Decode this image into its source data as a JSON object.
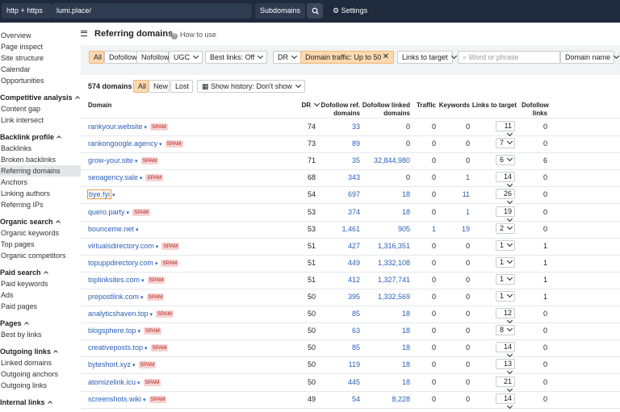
{
  "topbar": {
    "protocol": "http + https",
    "url": "lumi.place/",
    "mode": "Subdomains",
    "settings": "Settings"
  },
  "sidebar": {
    "items": [
      {
        "label": "Overview"
      },
      {
        "label": "Page inspect"
      },
      {
        "label": "Site structure"
      },
      {
        "label": "Calendar"
      },
      {
        "label": "Opportunities"
      }
    ],
    "groups": [
      {
        "title": "Competitive analysis",
        "items": [
          {
            "label": "Content gap"
          },
          {
            "label": "Link intersect"
          }
        ]
      },
      {
        "title": "Backlink profile",
        "items": [
          {
            "label": "Backlinks"
          },
          {
            "label": "Broken backlinks"
          },
          {
            "label": "Referring domains",
            "active": true
          },
          {
            "label": "Anchors"
          },
          {
            "label": "Linking authors"
          },
          {
            "label": "Referring IPs"
          }
        ]
      },
      {
        "title": "Organic search",
        "items": [
          {
            "label": "Organic keywords"
          },
          {
            "label": "Top pages"
          },
          {
            "label": "Organic competitors"
          }
        ]
      },
      {
        "title": "Paid search",
        "items": [
          {
            "label": "Paid keywords"
          },
          {
            "label": "Ads"
          },
          {
            "label": "Paid pages"
          }
        ]
      },
      {
        "title": "Pages",
        "items": [
          {
            "label": "Best by links"
          }
        ]
      },
      {
        "title": "Outgoing links",
        "items": [
          {
            "label": "Linked domains"
          },
          {
            "label": "Outgoing anchors"
          },
          {
            "label": "Outgoing links"
          }
        ]
      },
      {
        "title": "Internal links",
        "items": []
      }
    ]
  },
  "header": {
    "title": "Referring domains",
    "help": "How to use"
  },
  "filters": {
    "tabs": [
      "All",
      "Dofollow",
      "Nofollow"
    ],
    "ugc": "UGC",
    "best_links": "Best links: Off",
    "dr": "DR",
    "domain_traffic": "Domain traffic: Up to 50",
    "links_to_target": "Links to target",
    "search_placeholder": "Word or phrase",
    "domain_name": "Domain name"
  },
  "table": {
    "count": "574 domains",
    "tabs": [
      "All",
      "New",
      "Lost"
    ],
    "history": "Show history: Don't show",
    "columns": [
      "Domain",
      "DR",
      "Dofollow ref. domains",
      "Dofollow linked domains",
      "Traffic",
      "Keywords",
      "Links to target",
      "Dofollow links"
    ],
    "rows": [
      {
        "domain": "rankyour.website",
        "tag": "SPAM",
        "dr": "74",
        "ref": "33",
        "linked": "0",
        "traffic": "0",
        "keywords": "0",
        "links": "11",
        "dofollow": "0"
      },
      {
        "domain": "rankongoogle.agency",
        "tag": "SPAM",
        "dr": "73",
        "ref": "89",
        "linked": "0",
        "traffic": "0",
        "keywords": "0",
        "links": "7",
        "dofollow": "0"
      },
      {
        "domain": "grow-your.site",
        "tag": "SPAM",
        "dr": "71",
        "ref": "35",
        "linked": "32,844,980",
        "traffic": "0",
        "keywords": "0",
        "links": "6",
        "dofollow": "6"
      },
      {
        "domain": "seoagency.sale",
        "tag": "SPAM",
        "dr": "68",
        "ref": "343",
        "linked": "0",
        "traffic": "0",
        "keywords": "1",
        "links": "14",
        "dofollow": "0"
      },
      {
        "domain": "bye.fyi",
        "focused": true,
        "dr": "54",
        "ref": "697",
        "linked": "18",
        "traffic": "0",
        "keywords": "11",
        "links": "26",
        "dofollow": "0"
      },
      {
        "domain": "quero.party",
        "tag": "SPAM",
        "dr": "53",
        "ref": "374",
        "linked": "18",
        "traffic": "0",
        "keywords": "1",
        "links": "19",
        "dofollow": "0"
      },
      {
        "domain": "bounceme.net",
        "dr": "53",
        "ref": "1,461",
        "linked": "905",
        "traffic": "1",
        "keywords": "19",
        "links": "2",
        "dofollow": "0"
      },
      {
        "domain": "virtualsdirectory.com",
        "tag": "SPAM",
        "dr": "51",
        "ref": "427",
        "linked": "1,316,351",
        "traffic": "0",
        "keywords": "0",
        "links": "1",
        "dofollow": "1"
      },
      {
        "domain": "topuppdirectory.com",
        "tag": "SPAM",
        "dr": "51",
        "ref": "449",
        "linked": "1,332,108",
        "traffic": "0",
        "keywords": "0",
        "links": "1",
        "dofollow": "1"
      },
      {
        "domain": "toplinksites.com",
        "tag": "SPAM",
        "dr": "51",
        "ref": "412",
        "linked": "1,327,741",
        "traffic": "0",
        "keywords": "0",
        "links": "1",
        "dofollow": "1"
      },
      {
        "domain": "prepostlink.com",
        "tag": "SPAM",
        "dr": "50",
        "ref": "395",
        "linked": "1,332,569",
        "traffic": "0",
        "keywords": "0",
        "links": "1",
        "dofollow": "1"
      },
      {
        "domain": "analyticshaven.top",
        "tag": "SPAM",
        "dr": "50",
        "ref": "85",
        "linked": "18",
        "traffic": "0",
        "keywords": "0",
        "links": "12",
        "dofollow": "0"
      },
      {
        "domain": "blogsphere.top",
        "tag": "SPAM",
        "dr": "50",
        "ref": "63",
        "linked": "18",
        "traffic": "0",
        "keywords": "0",
        "links": "8",
        "dofollow": "0"
      },
      {
        "domain": "creativeposts.top",
        "tag": "SPAM",
        "dr": "50",
        "ref": "85",
        "linked": "18",
        "traffic": "0",
        "keywords": "0",
        "links": "14",
        "dofollow": "0"
      },
      {
        "domain": "byteshort.xyz",
        "tag": "SPAM",
        "dr": "50",
        "ref": "119",
        "linked": "18",
        "traffic": "0",
        "keywords": "0",
        "links": "13",
        "dofollow": "0"
      },
      {
        "domain": "atomizelink.icu",
        "tag": "SPAM",
        "dr": "50",
        "ref": "445",
        "linked": "18",
        "traffic": "0",
        "keywords": "0",
        "links": "21",
        "dofollow": "0"
      },
      {
        "domain": "screenshots.wiki",
        "tag": "SPAM",
        "dr": "49",
        "ref": "54",
        "linked": "8,228",
        "traffic": "0",
        "keywords": "0",
        "links": "14",
        "dofollow": "0"
      }
    ]
  }
}
